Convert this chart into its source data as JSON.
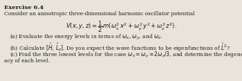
{
  "title": "Exercise 6.4",
  "line1": "Consider an anisotropic three-dimensional harmonic oscillator potential",
  "formula": "$V(x, y, z) = \\dfrac{1}{2}m(\\omega_x^2\\, x^2 + \\omega_y^2\\, y^2 + \\omega_z^2\\, z^2).$",
  "part_a": "(a) Evaluate the energy levels in terms of $\\omega_x$, $\\omega_y$, and $\\omega_z$.",
  "part_b": "(b) Calculate $[\\hat{H},\\, \\hat{L}_z]$. Do you expect the wave functions to be eigenfunctions of $\\hat{L}^2$?",
  "part_c1": "(c) Find the three lowest levels for the case $\\omega_x = \\omega_y = 2\\omega_z/3$, and determine the degener-",
  "part_c2": "acy of each level.",
  "bg_color": "#e8e4da",
  "text_color": "#1a1a1a",
  "font_size_title": 6.0,
  "font_size_body": 5.5,
  "font_size_formula": 6.2
}
